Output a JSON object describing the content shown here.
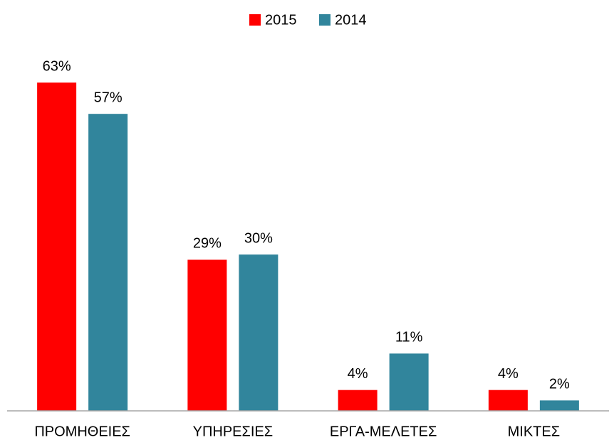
{
  "chart_data": {
    "type": "bar",
    "categories": [
      "ΠΡΟΜΗΘΕΙΕΣ",
      "ΥΠΗΡΕΣΙΕΣ",
      "ΕΡΓΑ-ΜΕΛΕΤΕΣ",
      "ΜΙΚΤΕΣ"
    ],
    "series": [
      {
        "name": "2015",
        "color": "#ff0000",
        "values": [
          63,
          29,
          4,
          4
        ],
        "value_labels": [
          "63%",
          "29%",
          "4%",
          "4%"
        ]
      },
      {
        "name": "2014",
        "color": "#31859c",
        "values": [
          57,
          30,
          11,
          2
        ],
        "value_labels": [
          "57%",
          "30%",
          "11%",
          "2%"
        ]
      }
    ],
    "ylim": [
      0,
      68
    ],
    "legend": "top"
  }
}
